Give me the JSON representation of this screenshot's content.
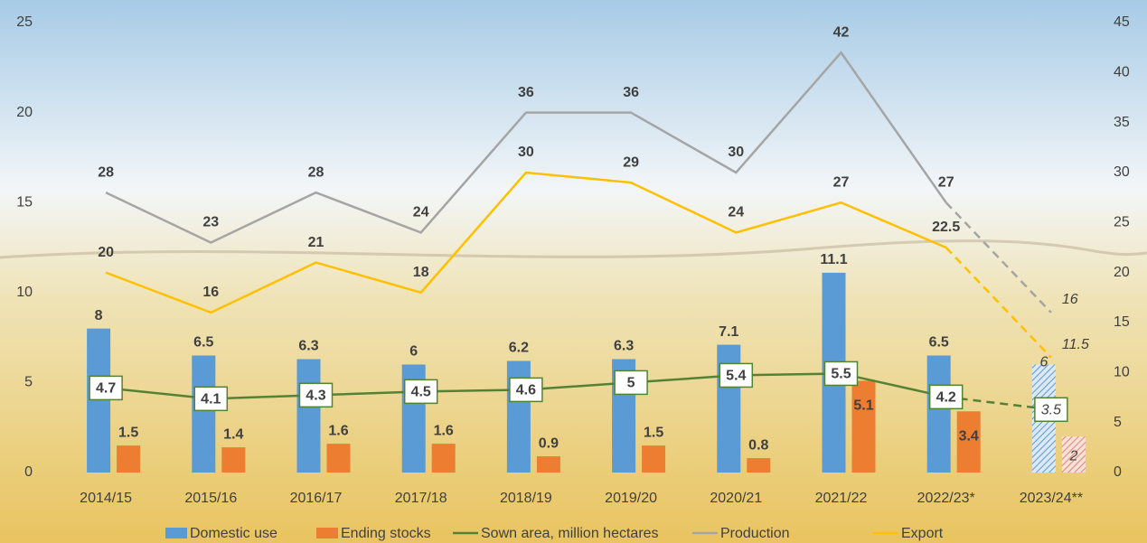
{
  "chart_data": {
    "type": "bar",
    "categories": [
      "2014/15",
      "2015/16",
      "2016/17",
      "2017/18",
      "2018/19",
      "2019/20",
      "2020/21",
      "2021/22",
      "2022/23*",
      "2023/24**"
    ],
    "series": [
      {
        "name": "Domestic use",
        "type": "bar",
        "axis": "y",
        "color": "#5b9bd5",
        "values": [
          8,
          6.5,
          6.3,
          6,
          6.2,
          6.3,
          7.1,
          11.1,
          6.5,
          6
        ]
      },
      {
        "name": "Ending stocks",
        "type": "bar",
        "axis": "y",
        "color": "#ed7d31",
        "values": [
          1.5,
          1.4,
          1.6,
          1.6,
          0.9,
          1.5,
          0.8,
          5.1,
          3.4,
          2
        ]
      },
      {
        "name": "Sown area, million hectares",
        "type": "line",
        "axis": "y",
        "color": "#548235",
        "values": [
          4.7,
          4.1,
          4.3,
          4.5,
          4.6,
          5,
          5.4,
          5.5,
          4.2,
          3.5
        ]
      },
      {
        "name": "Production",
        "type": "line",
        "axis": "y2",
        "color": "#a5a5a5",
        "values": [
          28,
          23,
          28,
          24,
          36,
          36,
          30,
          42,
          27,
          16
        ]
      },
      {
        "name": "Export",
        "type": "line",
        "axis": "y2",
        "color": "#ffc000",
        "values": [
          20,
          16,
          21,
          18,
          30,
          29,
          24,
          27,
          22.5,
          11.5
        ]
      }
    ],
    "ylim": [
      0,
      25
    ],
    "yticks": [
      0,
      5,
      10,
      15,
      20,
      25
    ],
    "y2lim": [
      0,
      45
    ],
    "y2ticks": [
      0,
      5,
      10,
      15,
      20,
      25,
      30,
      35,
      40,
      45
    ],
    "grid": false,
    "legend": "bottom"
  }
}
